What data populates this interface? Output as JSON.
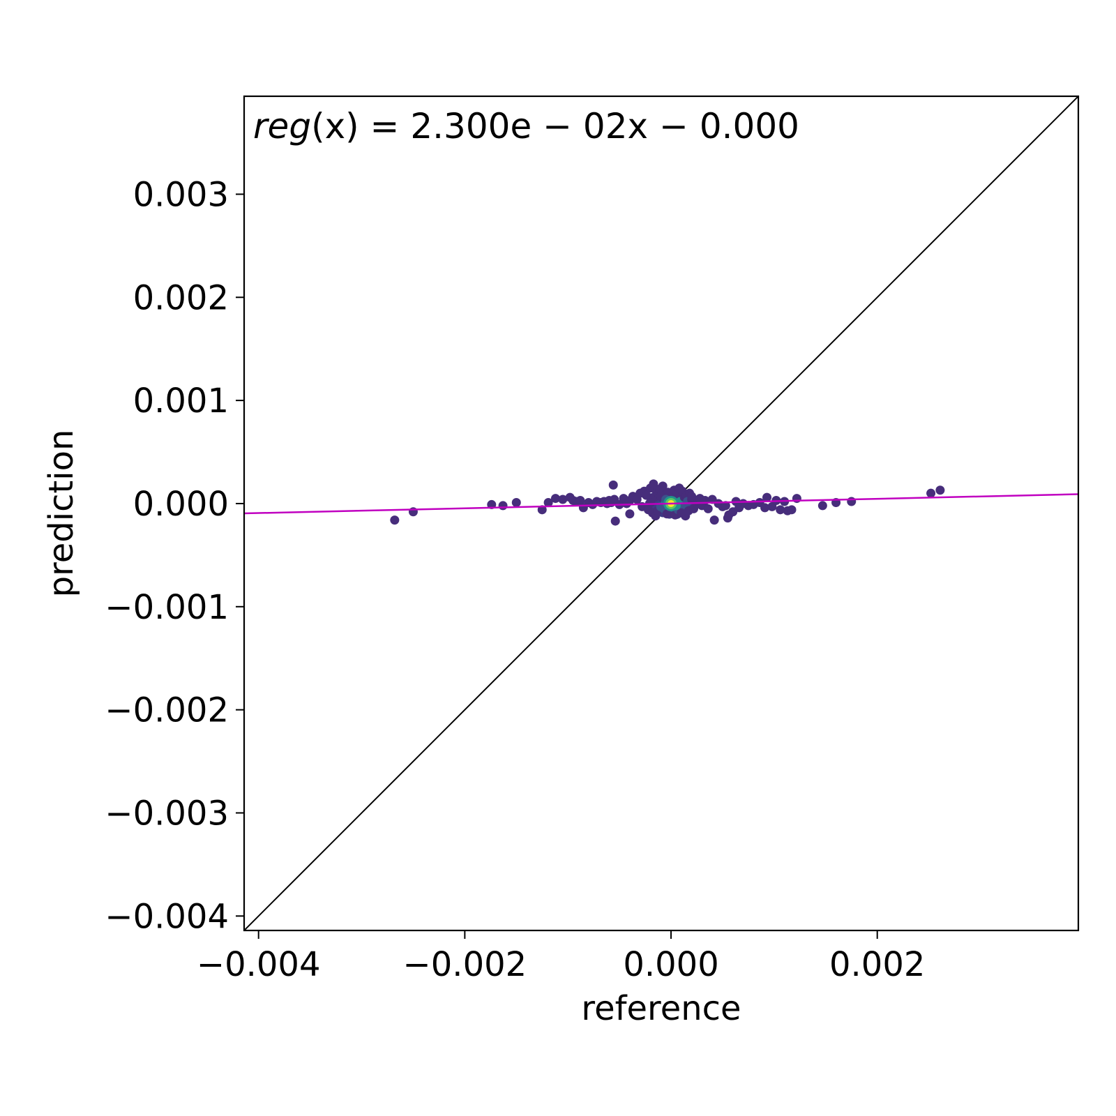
{
  "chart_data": {
    "type": "scatter",
    "title": "",
    "xlabel": "reference",
    "ylabel": "prediction",
    "annotation": {
      "prefix": "reg",
      "text": "(x) = 2.300e − 02x − 0.000"
    },
    "xlim": [
      -0.00414,
      0.00395
    ],
    "ylim": [
      -0.00414,
      0.00395
    ],
    "x_ticks": [
      -0.004,
      -0.002,
      0.0,
      0.002
    ],
    "x_tick_labels": [
      "−0.004",
      "−0.002",
      "0.000",
      "0.002"
    ],
    "y_ticks": [
      -0.004,
      -0.003,
      -0.002,
      -0.001,
      0.0,
      0.001,
      0.002,
      0.003
    ],
    "y_tick_labels": [
      "−0.004",
      "−0.003",
      "−0.002",
      "−0.001",
      "0.000",
      "0.001",
      "0.002",
      "0.003"
    ],
    "grid": false,
    "identity_line": {
      "color": "#000000"
    },
    "regression_line": {
      "slope": 0.023,
      "intercept": 0.0,
      "color": "#c000c0"
    },
    "colormap": "viridis",
    "series": [
      {
        "x": [
          -0.00268,
          -0.0025,
          -0.00174,
          -0.00163,
          -0.0015,
          -0.00125,
          -0.00119,
          -0.00112,
          -0.00105,
          -0.00098,
          -0.00095,
          -0.00092,
          -0.00088,
          -0.00085,
          -0.0008,
          -0.00076,
          -0.00072,
          -0.00068,
          -0.00065,
          -0.00062,
          -0.0006,
          -0.00058,
          -0.00055,
          -0.0005,
          -0.00046,
          -0.00043,
          -0.0004,
          -0.00037,
          -0.00033,
          -0.0003,
          -0.00028,
          -0.00026,
          -0.00024,
          -0.00022,
          -0.0002,
          -0.00019,
          -0.00018,
          -0.00017,
          -0.00016,
          -0.00015,
          -0.00014,
          -0.00013,
          -0.00012,
          -0.00011,
          -0.0001,
          -9e-05,
          -8e-05,
          -7e-05,
          -6e-05,
          -5e-05,
          -4e-05,
          -3e-05,
          -2e-05,
          -1e-05,
          0.0,
          1e-05,
          2e-05,
          3e-05,
          4e-05,
          5e-05,
          6e-05,
          7e-05,
          8e-05,
          9e-05,
          0.0001,
          0.00011,
          0.00012,
          0.00013,
          0.00014,
          0.00015,
          0.00016,
          0.00017,
          0.00018,
          0.0002,
          0.00022,
          0.00025,
          0.00028,
          0.0003,
          0.00033,
          0.00036,
          0.0004,
          0.00042,
          0.00046,
          0.0005,
          0.00053,
          0.00056,
          0.0006,
          0.00063,
          0.00066,
          0.0007,
          0.00075,
          0.0008,
          0.00086,
          0.00091,
          0.00093,
          0.00098,
          0.00102,
          0.00106,
          0.0011,
          0.00113,
          0.00117,
          0.00122,
          0.00147,
          0.0016,
          0.00175,
          0.00252,
          0.00261,
          -0.00056,
          -0.00054,
          -0.0001,
          0.0001,
          0.0003,
          0.00055,
          -0.0002,
          -0.0004,
          0.0002,
          5e-05,
          -5e-05
        ],
        "y": [
          -0.00016,
          -8e-05,
          -1e-05,
          -2e-05,
          1e-05,
          -6e-05,
          1e-05,
          5e-05,
          4e-05,
          6e-05,
          3e-05,
          2e-05,
          3e-05,
          -4e-05,
          1e-05,
          -1e-05,
          2e-05,
          1e-05,
          2e-05,
          0.0,
          3e-05,
          1e-05,
          4e-05,
          -1e-05,
          5e-05,
          0.0,
          3e-05,
          7e-05,
          4e-05,
          0.0001,
          -3e-05,
          0.00012,
          8e-05,
          -6e-05,
          0.00015,
          5e-05,
          -9e-05,
          0.00019,
          6e-05,
          -0.00012,
          0.00011,
          -7e-05,
          9e-05,
          0.00014,
          -3e-05,
          6e-05,
          0.00017,
          -5e-05,
          8e-05,
          2e-05,
          -0.0001,
          0.00011,
          4e-05,
          -8e-05,
          0.0,
          7e-05,
          -4e-05,
          0.00013,
          -0.00011,
          3e-05,
          9e-05,
          -6e-05,
          0.00015,
          2e-05,
          -9e-05,
          0.00012,
          -3e-05,
          6e-05,
          -0.00012,
          8e-05,
          2e-05,
          -7e-05,
          0.0001,
          4e-05,
          -5e-05,
          0.0,
          5e-05,
          -2e-05,
          3e-05,
          -5e-05,
          4e-05,
          -0.00016,
          0.0,
          -3e-05,
          -2e-05,
          -0.00011,
          -8e-05,
          2e-05,
          -4e-05,
          0.0,
          -2e-05,
          -1e-05,
          1e-05,
          -4e-05,
          6e-05,
          -3e-05,
          3e-05,
          -6e-05,
          2e-05,
          -7e-05,
          -6e-05,
          5e-05,
          -2e-05,
          1e-05,
          2e-05,
          0.0001,
          0.00013,
          0.00018,
          -0.00017,
          7e-05,
          -9e-05,
          3e-05,
          -0.00014,
          1e-05,
          -0.0001,
          7e-05,
          -2e-05,
          4e-05
        ],
        "color_scale": "outliers purple, dense center green to yellow"
      }
    ],
    "density_center": {
      "x": 0.0,
      "y": 0.0
    }
  }
}
